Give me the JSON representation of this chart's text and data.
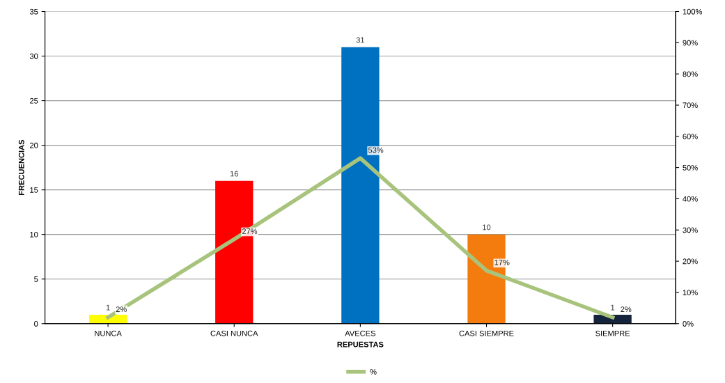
{
  "chart_data": {
    "type": "bar",
    "xlabel": "REPUESTAS",
    "ylabel": "FRECUENCIAS",
    "categories": [
      "NUNCA",
      "CASI NUNCA",
      "AVECES",
      "CASI SIEMPRE",
      "SIEMPRE"
    ],
    "series": [
      {
        "colors": [
          "#ffff00",
          "#ff0000",
          "#0070c0",
          "#f47c0f",
          "#14243d"
        ],
        "values": [
          1,
          16,
          31,
          10,
          1
        ],
        "data_labels": true
      },
      {
        "type": "line",
        "name": "%",
        "axis": "y2",
        "color": "#a8c47c",
        "values": [
          2,
          27,
          53,
          17,
          2
        ],
        "value_labels": [
          "2%",
          "27%",
          "53%",
          "17%",
          "2%"
        ],
        "marker": "none",
        "line_style": "solid"
      }
    ],
    "ylim": [
      0,
      35
    ],
    "yticks": [
      0,
      5,
      10,
      15,
      20,
      25,
      30,
      35
    ],
    "y2lim": [
      0,
      100
    ],
    "y2ticks": [
      {
        "value": 0,
        "label": "0%"
      },
      {
        "value": 10,
        "label": "10%"
      },
      {
        "value": 20,
        "label": "20%"
      },
      {
        "value": 30,
        "label": "30%"
      },
      {
        "value": 40,
        "label": "40%"
      },
      {
        "value": 50,
        "label": "50%"
      },
      {
        "value": 60,
        "label": "60%"
      },
      {
        "value": 70,
        "label": "70%"
      },
      {
        "value": 80,
        "label": "80%"
      },
      {
        "value": 90,
        "label": "90%"
      },
      {
        "value": 100,
        "label": "100%"
      }
    ],
    "grid": "y",
    "legend": "bottom"
  }
}
